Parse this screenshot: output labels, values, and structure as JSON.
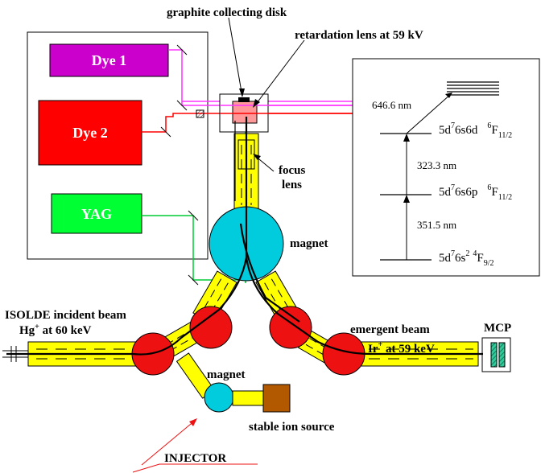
{
  "lasers": [
    {
      "label": "Dye 1",
      "color": "#cc00cc",
      "text_color": "#ffffff",
      "beam_color": "#ff33ff"
    },
    {
      "label": "Dye 2",
      "color": "#ff0000",
      "text_color": "#ffffff",
      "beam_color": "#ff0000"
    },
    {
      "label": "YAG",
      "color": "#00ff33",
      "text_color": "#ffffff",
      "beam_color": "#00cc33"
    }
  ],
  "labels": {
    "graphite_disk": "graphite collecting disk",
    "retardation_lens": "retardation lens at 59 kV",
    "focus_line1": "focus",
    "focus_line2": "lens",
    "magnet_main": "magnet",
    "magnet_injector": "magnet",
    "incident_line1": "ISOLDE incident beam",
    "incident_ion": "Hg",
    "incident_charge": "+",
    "incident_energy": " at 60 keV",
    "emergent_line1": "emergent beam",
    "emergent_ion": "Ir",
    "emergent_charge": "+",
    "emergent_energy": " at 59 keV",
    "mcp": "MCP",
    "stable_source": "stable ion source",
    "injector": "INJECTOR"
  },
  "levels": {
    "wavelength_top": "646.6 nm",
    "wavelength_mid": "323.3 nm",
    "wavelength_low": "351.5 nm",
    "level3": {
      "config_a": "5d",
      "sup_a": "7",
      "config_b": "6s6d",
      "term_sup": "6",
      "term": "F",
      "term_sub": "11/2"
    },
    "level2": {
      "config_a": "5d",
      "sup_a": "7",
      "config_b": "6s6p",
      "term_sup": "6",
      "term": "F",
      "term_sub": "11/2"
    },
    "level1": {
      "config_a": "5d",
      "sup_a": "7",
      "config_b": "6s",
      "sup_b": "2",
      "term_sup": "4",
      "term": "F",
      "term_sub": "9/2"
    }
  },
  "colors": {
    "beamline": "#ffff00",
    "magnet_big": "#00ccdd",
    "junction": "#ee1111",
    "target": "#ff9999",
    "source_box": "#b25900",
    "mcp_plate": "#22aa88"
  }
}
